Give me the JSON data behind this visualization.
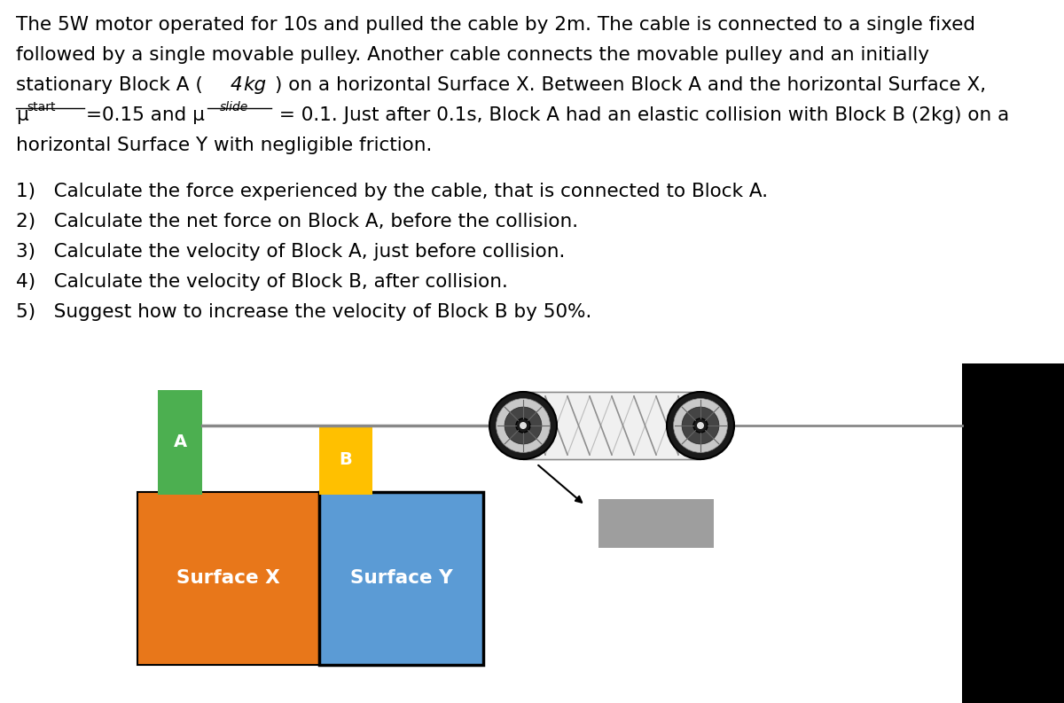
{
  "bg_color": "#FFFFFF",
  "surface_x_color": "#E8771A",
  "surface_y_color": "#5B9BD5",
  "block_a_color": "#4CAF50",
  "block_b_color": "#FFC000",
  "motor_box_color": "#9E9E9E",
  "black_wall_color": "#000000",
  "cable_color": "#888888",
  "pulley_outer": "#1a1a1a",
  "pulley_mid": "#b0b0b0",
  "pulley_inner": "#2a2a2a",
  "pulley_center": "#d8d8d8",
  "text_color": "#000000",
  "white": "#FFFFFF",
  "para_lines": [
    "The 5W motor operated for 10s and pulled the cable by 2m. The cable is connected to a single fixed",
    "followed by a single movable pulley. Another cable connects the movable pulley and an initially",
    "stationary Block A (4__kg__) on a horizontal Surface X. Between Block A and the horizontal Surface X,",
    "__mu_start__=0.15 and __mu_slide__ = 0.1. Just after 0.1s, Block A had an elastic collision with Block B (2kg) on a",
    "horizontal Surface Y with negligible friction."
  ],
  "questions": [
    "1)   Calculate the force experienced by the cable, that is connected to Block A.",
    "2)   Calculate the net force on Block A, before the collision.",
    "3)   Calculate the velocity of Block A, just before collision.",
    "4)   Calculate the velocity of Block B, after collision.",
    "5)   Suggest how to increase the velocity of Block B by 50%."
  ]
}
